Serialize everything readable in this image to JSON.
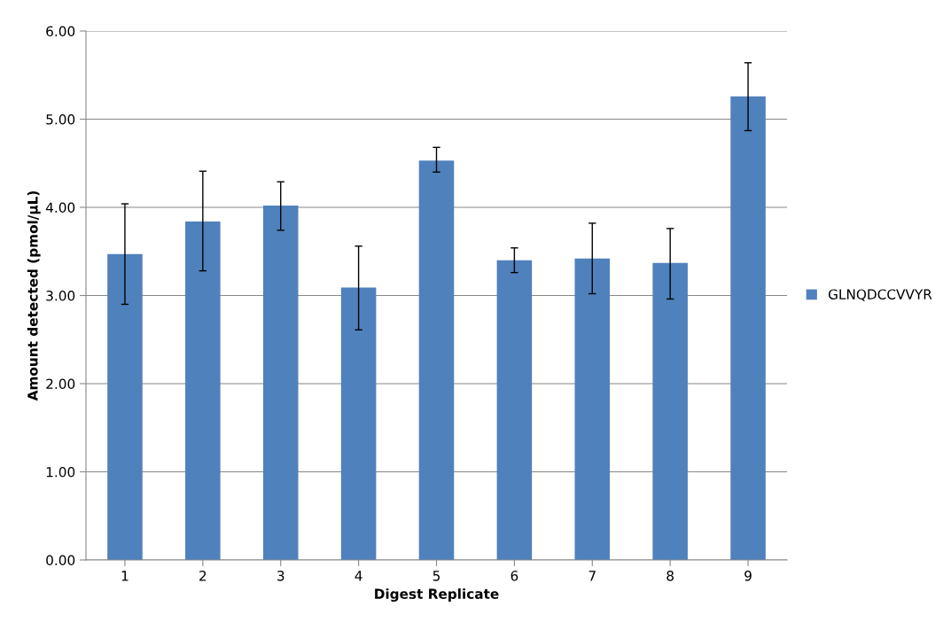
{
  "chart_data": {
    "type": "bar",
    "xlabel": "Digest Replicate",
    "ylabel": "Amount detected (pmol/µL)",
    "categories": [
      "1",
      "2",
      "3",
      "4",
      "5",
      "6",
      "7",
      "8",
      "9"
    ],
    "series": [
      {
        "name": "GLNQDCCVVYR",
        "color": "#4f81bd",
        "values": [
          3.47,
          3.84,
          4.02,
          3.09,
          4.53,
          3.4,
          3.42,
          3.37,
          5.26
        ],
        "errors": [
          [
            2.9,
            4.04
          ],
          [
            3.28,
            4.41
          ],
          [
            3.74,
            4.29
          ],
          [
            2.61,
            3.56
          ],
          [
            4.4,
            4.68
          ],
          [
            3.26,
            3.54
          ],
          [
            3.02,
            3.82
          ],
          [
            2.96,
            3.76
          ],
          [
            4.87,
            5.64
          ]
        ]
      }
    ],
    "ylim": [
      0,
      6
    ],
    "yticks": [
      {
        "value": 0,
        "label": "0.00"
      },
      {
        "value": 1,
        "label": "1.00"
      },
      {
        "value": 2,
        "label": "2.00"
      },
      {
        "value": 3,
        "label": "3.00"
      },
      {
        "value": 4,
        "label": "4.00"
      },
      {
        "value": 5,
        "label": "5.00"
      },
      {
        "value": 6,
        "label": "6.00"
      }
    ],
    "grid": "y",
    "legend": "right"
  }
}
